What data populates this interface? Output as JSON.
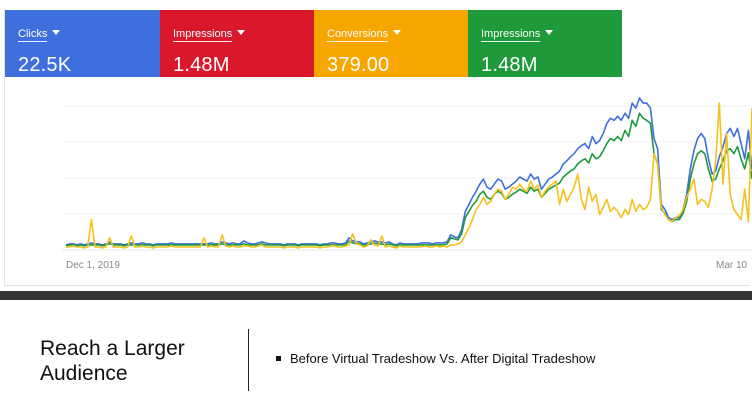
{
  "metrics": [
    {
      "label": "Clicks",
      "value": "22.5K",
      "color": "#3F6FDD"
    },
    {
      "label": "Impressions",
      "value": "1.48M",
      "color": "#D9192B"
    },
    {
      "label": "Conversions",
      "value": "379.00",
      "color": "#F7A600"
    },
    {
      "label": "Impressions",
      "value": "1.48M",
      "color": "#1E9A3A"
    }
  ],
  "chart_data": {
    "type": "line",
    "x_labels": [
      "Dec 1, 2019",
      "Mar 10"
    ],
    "series": [
      {
        "color": "#3F6FDD",
        "values": [
          5,
          6,
          6,
          5,
          6,
          5,
          6,
          7,
          6,
          6,
          5,
          6,
          8,
          6,
          6,
          6,
          5,
          6,
          7,
          6,
          6,
          7,
          6,
          6,
          5,
          6,
          6,
          6,
          6,
          7,
          6,
          6,
          6,
          6,
          6,
          6,
          6,
          6,
          6,
          6,
          7,
          6,
          6,
          8,
          7,
          6,
          7,
          6,
          6,
          9,
          7,
          6,
          6,
          7,
          8,
          7,
          6,
          6,
          6,
          6,
          5,
          6,
          6,
          6,
          5,
          6,
          6,
          6,
          6,
          6,
          5,
          6,
          6,
          7,
          7,
          6,
          6,
          7,
          12,
          9,
          8,
          8,
          6,
          7,
          8,
          9,
          8,
          8,
          7,
          8,
          6,
          5,
          7,
          6,
          6,
          6,
          6,
          6,
          7,
          7,
          7,
          6,
          7,
          7,
          7,
          8,
          15,
          13,
          12,
          20,
          38,
          45,
          52,
          58,
          65,
          70,
          62,
          60,
          65,
          70,
          68,
          60,
          62,
          65,
          68,
          72,
          70,
          68,
          75,
          70,
          72,
          60,
          65,
          70,
          72,
          75,
          78,
          85,
          88,
          92,
          95,
          100,
          103,
          105,
          100,
          112,
          105,
          108,
          115,
          125,
          130,
          128,
          132,
          128,
          135,
          130,
          145,
          140,
          150,
          145,
          145,
          140,
          110,
          100,
          45,
          40,
          32,
          30,
          32,
          32,
          40,
          55,
          80,
          98,
          110,
          115,
          110,
          90,
          75,
          78,
          92,
          102,
          115,
          120,
          112,
          120,
          105,
          90,
          118,
          80
        ]
      },
      {
        "color": "#1E9A3A",
        "values": [
          4,
          5,
          5,
          4,
          5,
          4,
          5,
          5,
          5,
          5,
          4,
          5,
          6,
          5,
          5,
          5,
          4,
          5,
          5,
          5,
          5,
          5,
          5,
          5,
          4,
          5,
          5,
          5,
          5,
          5,
          5,
          5,
          5,
          5,
          5,
          5,
          5,
          5,
          5,
          5,
          5,
          5,
          5,
          6,
          5,
          5,
          5,
          5,
          5,
          6,
          5,
          5,
          5,
          5,
          6,
          5,
          5,
          5,
          5,
          5,
          4,
          5,
          5,
          5,
          4,
          5,
          5,
          5,
          5,
          5,
          4,
          5,
          5,
          5,
          5,
          5,
          5,
          5,
          9,
          7,
          6,
          6,
          5,
          5,
          6,
          7,
          6,
          6,
          5,
          6,
          5,
          4,
          5,
          5,
          5,
          5,
          5,
          5,
          5,
          5,
          5,
          5,
          5,
          5,
          5,
          6,
          12,
          11,
          10,
          16,
          32,
          38,
          44,
          48,
          55,
          58,
          52,
          50,
          55,
          58,
          56,
          50,
          52,
          55,
          57,
          60,
          58,
          56,
          62,
          58,
          60,
          52,
          56,
          60,
          62,
          64,
          66,
          72,
          75,
          78,
          80,
          85,
          88,
          90,
          86,
          95,
          90,
          92,
          98,
          105,
          110,
          108,
          112,
          108,
          118,
          112,
          128,
          122,
          135,
          130,
          128,
          125,
          95,
          85,
          40,
          36,
          30,
          28,
          30,
          30,
          36,
          48,
          70,
          85,
          95,
          98,
          95,
          80,
          68,
          70,
          80,
          88,
          98,
          100,
          95,
          102,
          90,
          80,
          96,
          70
        ]
      },
      {
        "color": "#F4C21B",
        "values": [
          3,
          3,
          4,
          3,
          3,
          2,
          3,
          30,
          3,
          3,
          2,
          3,
          12,
          3,
          3,
          3,
          2,
          3,
          14,
          3,
          3,
          4,
          3,
          3,
          2,
          3,
          3,
          3,
          3,
          4,
          3,
          3,
          3,
          3,
          3,
          3,
          3,
          3,
          12,
          3,
          4,
          3,
          3,
          15,
          4,
          3,
          4,
          3,
          3,
          4,
          4,
          3,
          3,
          4,
          5,
          3,
          3,
          3,
          3,
          3,
          2,
          3,
          3,
          3,
          2,
          3,
          3,
          3,
          3,
          3,
          2,
          3,
          3,
          4,
          4,
          3,
          3,
          4,
          5,
          16,
          6,
          5,
          3,
          4,
          10,
          5,
          4,
          14,
          3,
          4,
          3,
          2,
          4,
          3,
          3,
          3,
          3,
          3,
          3,
          4,
          3,
          3,
          4,
          3,
          4,
          3,
          5,
          5,
          6,
          8,
          15,
          22,
          30,
          40,
          45,
          52,
          45,
          48,
          55,
          60,
          58,
          50,
          55,
          62,
          60,
          65,
          60,
          58,
          68,
          60,
          64,
          52,
          58,
          62,
          65,
          68,
          45,
          60,
          48,
          55,
          62,
          75,
          50,
          40,
          62,
          48,
          55,
          35,
          42,
          50,
          38,
          42,
          38,
          32,
          40,
          35,
          50,
          38,
          45,
          40,
          42,
          50,
          95,
          85,
          42,
          35,
          30,
          28,
          32,
          34,
          40,
          52,
          60,
          70,
          45,
          50,
          48,
          42,
          60,
          88,
          145,
          65,
          115,
          55,
          40,
          35,
          30,
          60,
          28,
          140
        ]
      }
    ]
  },
  "slide": {
    "title": "Reach a Larger\nAudience",
    "bullet": "Before Virtual Tradeshow Vs. After Digital Tradeshow"
  }
}
